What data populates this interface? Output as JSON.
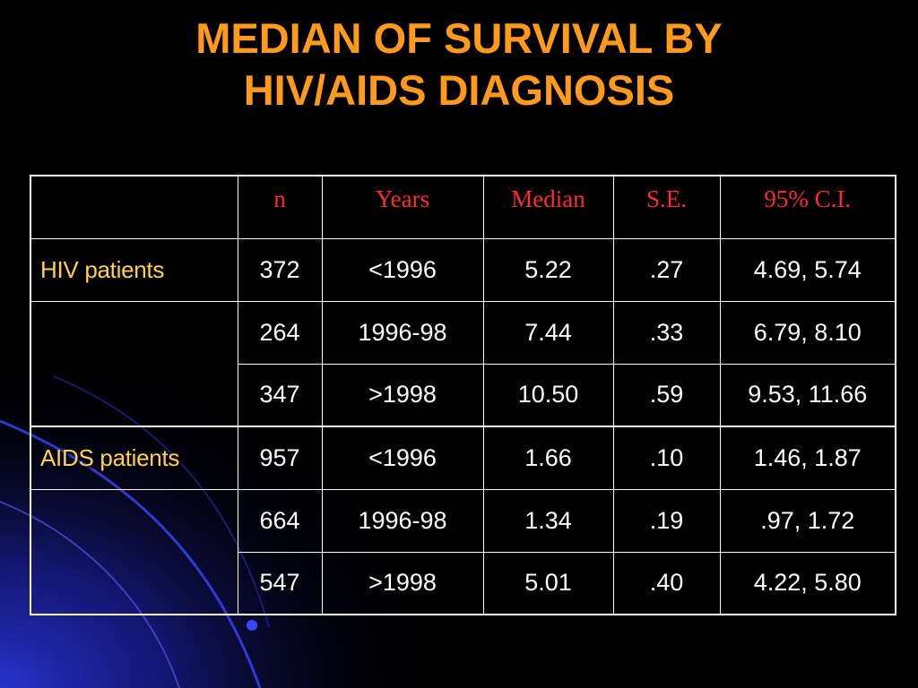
{
  "slide": {
    "title_line1": "MEDIAN OF SURVIVAL BY",
    "title_line2": "HIV/AIDS DIAGNOSIS",
    "colors": {
      "background": "#000000",
      "title": "#ff9a1a",
      "header_text": "#ff2a2a",
      "row_label": "#ffd24d",
      "cell_text": "#ffffff",
      "accent_blue": "#1e2aa8"
    }
  },
  "table": {
    "headers": [
      "",
      "n",
      "Years",
      "Median",
      "S.E.",
      "95% C.I."
    ],
    "rows": [
      {
        "label": "HIV patients",
        "n": "372",
        "years": "<1996",
        "median": "5.22",
        "se": ".27",
        "ci": "4.69, 5.74"
      },
      {
        "label": "",
        "n": "264",
        "years": "1996-98",
        "median": "7.44",
        "se": ".33",
        "ci": "6.79, 8.10"
      },
      {
        "label": "",
        "n": "347",
        "years": ">1998",
        "median": "10.50",
        "se": ".59",
        "ci": "9.53, 11.66"
      },
      {
        "label": "AIDS patients",
        "n": "957",
        "years": "<1996",
        "median": "1.66",
        "se": ".10",
        "ci": "1.46, 1.87"
      },
      {
        "label": "",
        "n": "664",
        "years": "1996-98",
        "median": "1.34",
        "se": ".19",
        "ci": ".97, 1.72"
      },
      {
        "label": "",
        "n": "547",
        "years": ">1998",
        "median": "5.01",
        "se": ".40",
        "ci": "4.22, 5.80"
      }
    ]
  }
}
